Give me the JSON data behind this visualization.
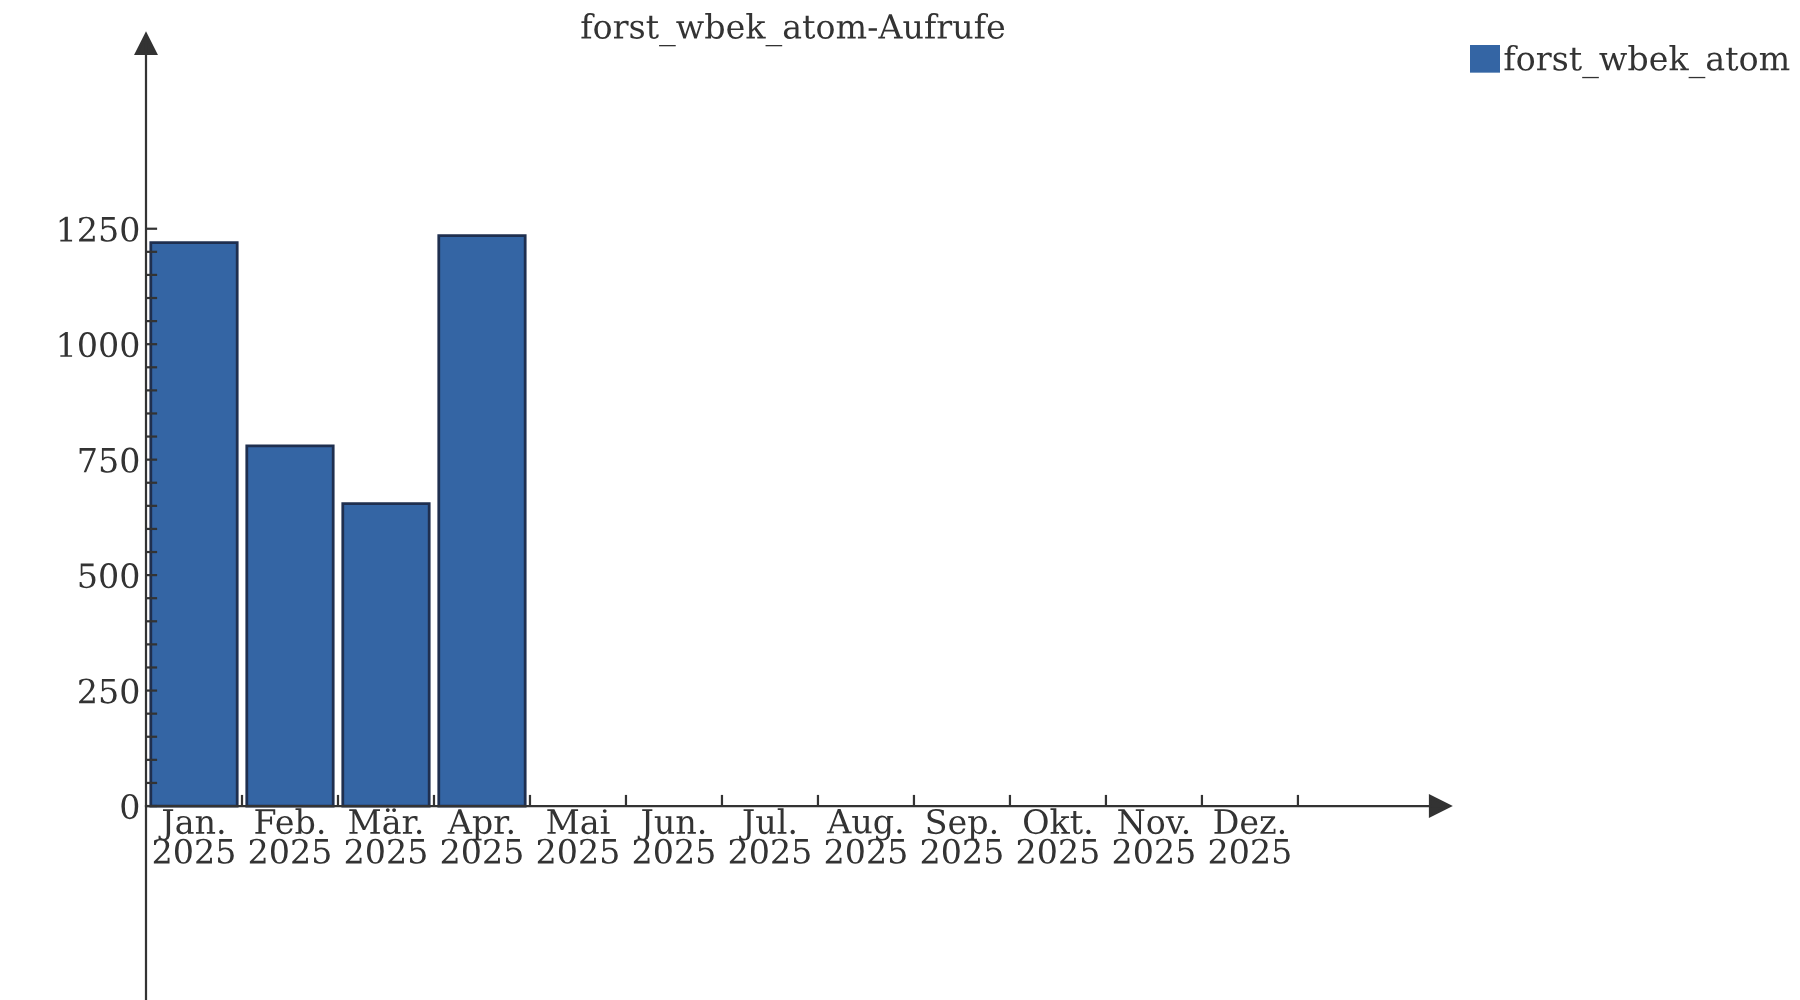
{
  "chart_data": {
    "type": "bar",
    "title": "forst_wbek_atom-Aufrufe",
    "categories": [
      "Jan.\n2025",
      "Feb.\n2025",
      "Mär.\n2025",
      "Apr.\n2025",
      "Mai\n2025",
      "Jun.\n2025",
      "Jul.\n2025",
      "Aug.\n2025",
      "Sep.\n2025",
      "Okt.\n2025",
      "Nov.\n2025",
      "Dez.\n2025"
    ],
    "series": [
      {
        "name": "forst_wbek_atom",
        "color": "#3465a4",
        "values": [
          1220,
          780,
          655,
          1235,
          null,
          null,
          null,
          null,
          null,
          null,
          null,
          null
        ]
      }
    ],
    "ylim": [
      -420,
      1650
    ],
    "yticks": [
      0,
      {
        "value": 50,
        "label": null
      },
      {
        "value": 100,
        "label": null
      },
      {
        "value": 150,
        "label": null
      },
      {
        "value": 200,
        "label": null
      },
      250,
      {
        "value": 300,
        "label": null
      },
      {
        "value": 350,
        "label": null
      },
      {
        "value": 400,
        "label": null
      },
      {
        "value": 450,
        "label": null
      },
      500,
      {
        "value": 550,
        "label": null
      },
      {
        "value": 600,
        "label": null
      },
      {
        "value": 650,
        "label": null
      },
      {
        "value": 700,
        "label": null
      },
      750,
      {
        "value": 800,
        "label": null
      },
      {
        "value": 850,
        "label": null
      },
      {
        "value": 900,
        "label": null
      },
      {
        "value": 950,
        "label": null
      },
      1000,
      {
        "value": 1050,
        "label": null
      },
      {
        "value": 1100,
        "label": null
      },
      {
        "value": 1150,
        "label": null
      },
      {
        "value": 1200,
        "label": null
      },
      1250
    ],
    "grid": false,
    "legend": "top right"
  }
}
